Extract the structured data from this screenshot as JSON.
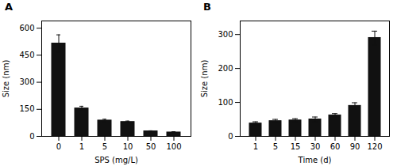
{
  "chart_data": [
    {
      "type": "bar",
      "title": "A",
      "categories": [
        "0",
        "1",
        "5",
        "10",
        "50",
        "100"
      ],
      "values": [
        515,
        155,
        88,
        80,
        28,
        22
      ],
      "errors": [
        48,
        12,
        7,
        5,
        3,
        4
      ],
      "xlabel": "SPS (mg/L)",
      "ylabel": "Size (nm)",
      "ylim": [
        0,
        640
      ],
      "yticks": [
        0,
        150,
        300,
        450,
        600
      ],
      "color": "#111111",
      "grid": false
    },
    {
      "type": "bar",
      "title": "B",
      "categories": [
        "1",
        "5",
        "15",
        "30",
        "60",
        "90",
        "120"
      ],
      "values": [
        38,
        45,
        47,
        50,
        62,
        90,
        290
      ],
      "errors": [
        5,
        5,
        5,
        7,
        5,
        9,
        20
      ],
      "xlabel": "Time (d)",
      "ylabel": "Size (nm)",
      "ylim": [
        0,
        340
      ],
      "yticks": [
        0,
        100,
        200,
        300
      ],
      "color": "#111111",
      "grid": false
    }
  ]
}
